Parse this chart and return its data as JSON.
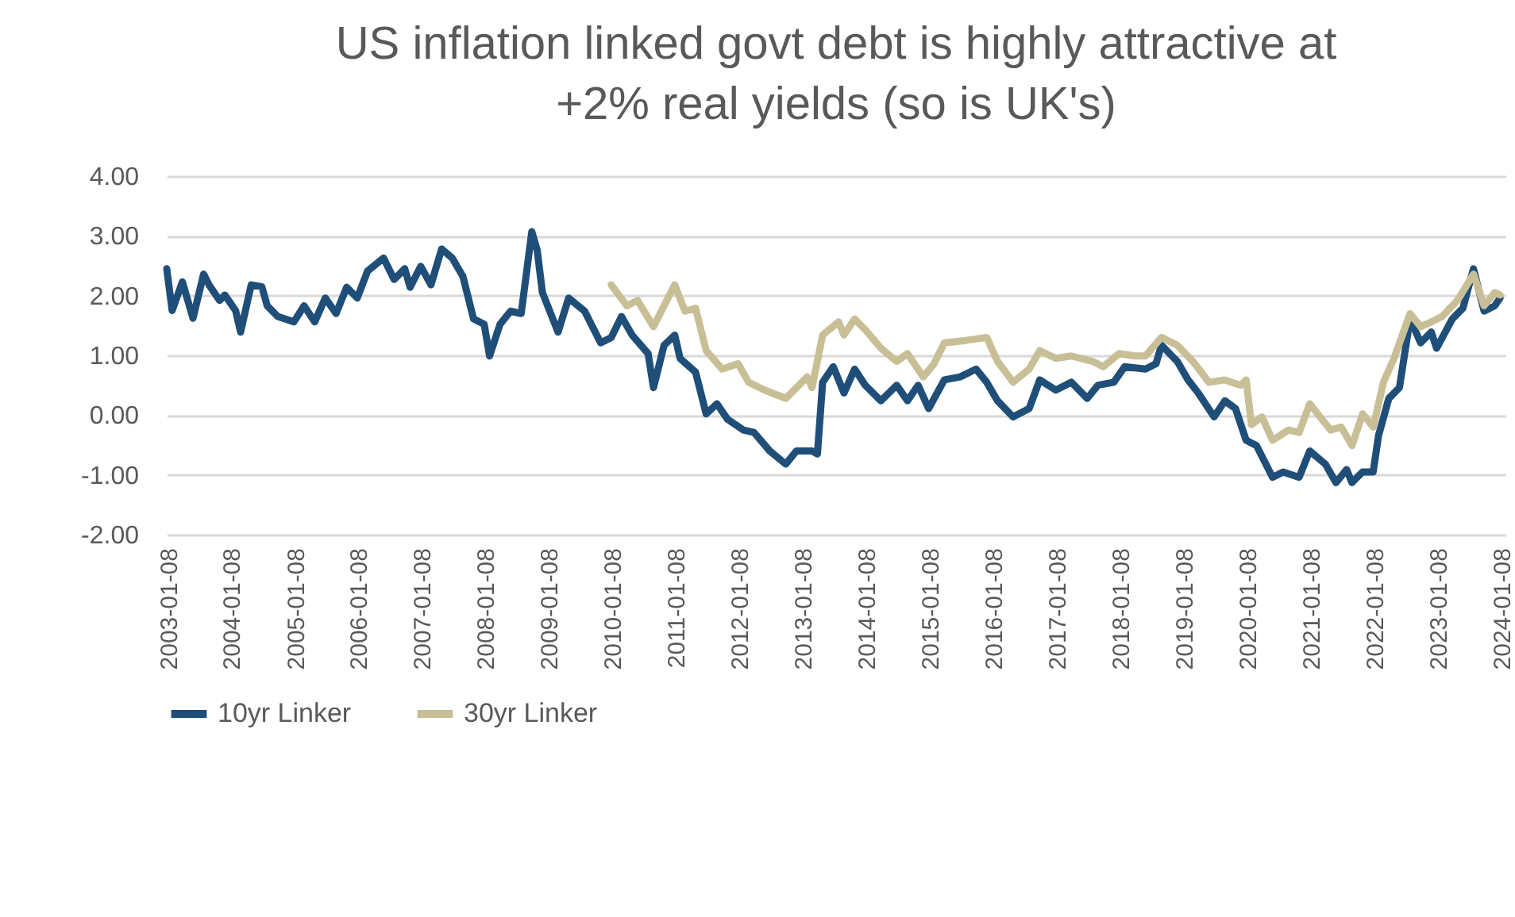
{
  "chart_data": {
    "type": "line",
    "title": "US inflation linked govt debt is highly attractive at +2% real yields (so is UK's)",
    "xlim": [
      "2003-01-01",
      "2024-02-01"
    ],
    "xticks": [
      "2003-01-08",
      "2004-01-08",
      "2005-01-08",
      "2006-01-08",
      "2007-01-08",
      "2008-01-08",
      "2009-01-08",
      "2010-01-08",
      "2011-01-08",
      "2012-01-08",
      "2013-01-08",
      "2014-01-08",
      "2015-01-08",
      "2016-01-08",
      "2017-01-08",
      "2018-01-08",
      "2019-01-08",
      "2020-01-08",
      "2021-01-08",
      "2022-01-08",
      "2023-01-08",
      "2024-01-08"
    ],
    "ylim": [
      -2,
      4
    ],
    "yticks": [
      {
        "value": -2,
        "label": "-2.00"
      },
      {
        "value": -1,
        "label": "-1.00"
      },
      {
        "value": 0,
        "label": "0.00"
      },
      {
        "value": 1,
        "label": "1.00"
      },
      {
        "value": 2,
        "label": "2.00"
      },
      {
        "value": 3,
        "label": "3.00"
      },
      {
        "value": 4,
        "label": "4.00"
      }
    ],
    "grid": "y",
    "legend": "bottom",
    "line_style": "solid",
    "marker": "none",
    "series": [
      {
        "name": "10yr Linker",
        "color": "#1f4e79",
        "x": [
          "2003-01",
          "2003-02",
          "2003-04",
          "2003-06",
          "2003-08",
          "2003-09",
          "2003-11",
          "2003-12",
          "2004-02",
          "2004-03",
          "2004-05",
          "2004-07",
          "2004-08",
          "2004-10",
          "2005-01",
          "2005-03",
          "2005-05",
          "2005-07",
          "2005-09",
          "2005-11",
          "2006-01",
          "2006-03",
          "2006-06",
          "2006-08",
          "2006-10",
          "2006-11",
          "2007-01",
          "2007-03",
          "2007-05",
          "2007-07",
          "2007-09",
          "2007-11",
          "2008-01",
          "2008-02",
          "2008-04",
          "2008-06",
          "2008-08",
          "2008-10",
          "2008-11",
          "2008-12",
          "2009-03",
          "2009-05",
          "2009-08",
          "2009-11",
          "2010-01",
          "2010-03",
          "2010-05",
          "2010-08",
          "2010-09",
          "2010-11",
          "2011-01",
          "2011-02",
          "2011-05",
          "2011-07",
          "2011-09",
          "2011-11",
          "2012-02",
          "2012-04",
          "2012-07",
          "2012-10",
          "2012-12",
          "2013-03",
          "2013-04",
          "2013-05",
          "2013-07",
          "2013-09",
          "2013-11",
          "2014-01",
          "2014-04",
          "2014-07",
          "2014-09",
          "2014-11",
          "2015-01",
          "2015-04",
          "2015-07",
          "2015-10",
          "2015-12",
          "2016-02",
          "2016-05",
          "2016-08",
          "2016-10",
          "2017-01",
          "2017-04",
          "2017-07",
          "2017-09",
          "2017-12",
          "2018-02",
          "2018-06",
          "2018-08",
          "2018-09",
          "2018-12",
          "2019-02",
          "2019-04",
          "2019-07",
          "2019-09",
          "2019-11",
          "2020-01",
          "2020-03",
          "2020-06",
          "2020-08",
          "2020-11",
          "2021-01",
          "2021-04",
          "2021-06",
          "2021-08",
          "2021-09",
          "2021-11",
          "2022-01",
          "2022-02",
          "2022-04",
          "2022-06",
          "2022-08",
          "2022-10",
          "2022-12",
          "2023-01",
          "2023-04",
          "2023-06",
          "2023-08",
          "2023-10",
          "2023-12",
          "2024-01"
        ],
        "values": [
          2.45,
          1.75,
          2.23,
          1.62,
          2.36,
          2.18,
          1.92,
          2.01,
          1.75,
          1.39,
          2.18,
          2.15,
          1.83,
          1.65,
          1.56,
          1.83,
          1.56,
          1.96,
          1.7,
          2.14,
          1.96,
          2.41,
          2.63,
          2.27,
          2.45,
          2.14,
          2.49,
          2.18,
          2.78,
          2.63,
          2.32,
          1.61,
          1.52,
          0.99,
          1.52,
          1.74,
          1.7,
          3.07,
          2.76,
          2.05,
          1.39,
          1.96,
          1.74,
          1.21,
          1.3,
          1.65,
          1.34,
          1.03,
          0.46,
          1.17,
          1.34,
          0.95,
          0.72,
          0.02,
          0.19,
          -0.07,
          -0.25,
          -0.29,
          -0.6,
          -0.82,
          -0.6,
          -0.6,
          -0.65,
          0.55,
          0.81,
          0.37,
          0.77,
          0.5,
          0.24,
          0.5,
          0.24,
          0.5,
          0.11,
          0.59,
          0.64,
          0.77,
          0.55,
          0.24,
          -0.03,
          0.11,
          0.59,
          0.42,
          0.55,
          0.28,
          0.5,
          0.55,
          0.81,
          0.77,
          0.86,
          1.17,
          0.9,
          0.59,
          0.37,
          -0.03,
          0.24,
          0.11,
          -0.42,
          -0.51,
          -1.04,
          -0.95,
          -1.04,
          -0.6,
          -0.82,
          -1.13,
          -0.91,
          -1.13,
          -0.95,
          -0.95,
          -0.34,
          0.28,
          0.46,
          1.61,
          1.21,
          1.39,
          1.12,
          1.61,
          1.79,
          2.45,
          1.74,
          1.83,
          1.96
        ]
      },
      {
        "name": "30yr Linker",
        "color": "#c9bf97",
        "x": [
          "2010-01",
          "2010-04",
          "2010-06",
          "2010-09",
          "2011-01",
          "2011-03",
          "2011-05",
          "2011-07",
          "2011-10",
          "2012-01",
          "2012-03",
          "2012-06",
          "2012-10",
          "2013-02",
          "2013-03",
          "2013-05",
          "2013-08",
          "2013-09",
          "2013-11",
          "2014-01",
          "2014-04",
          "2014-07",
          "2014-09",
          "2014-12",
          "2015-02",
          "2015-04",
          "2015-08",
          "2015-12",
          "2016-02",
          "2016-05",
          "2016-08",
          "2016-10",
          "2017-01",
          "2017-04",
          "2017-08",
          "2017-10",
          "2018-01",
          "2018-04",
          "2018-06",
          "2018-09",
          "2018-12",
          "2019-03",
          "2019-06",
          "2019-09",
          "2019-12",
          "2020-01",
          "2020-02",
          "2020-04",
          "2020-06",
          "2020-09",
          "2020-11",
          "2021-01",
          "2021-03",
          "2021-05",
          "2021-07",
          "2021-09",
          "2021-11",
          "2022-01",
          "2022-03",
          "2022-05",
          "2022-08",
          "2022-10",
          "2022-12",
          "2023-02",
          "2023-05",
          "2023-08",
          "2023-10",
          "2023-12",
          "2024-01"
        ],
        "values": [
          2.18,
          1.83,
          1.92,
          1.48,
          2.18,
          1.74,
          1.79,
          1.08,
          0.77,
          0.86,
          0.55,
          0.42,
          0.28,
          0.64,
          0.46,
          1.34,
          1.56,
          1.34,
          1.61,
          1.43,
          1.12,
          0.9,
          1.03,
          0.64,
          0.86,
          1.21,
          1.25,
          1.3,
          0.9,
          0.55,
          0.77,
          1.08,
          0.95,
          0.99,
          0.9,
          0.81,
          1.03,
          0.99,
          0.99,
          1.3,
          1.17,
          0.9,
          0.55,
          0.59,
          0.5,
          0.59,
          -0.16,
          -0.03,
          -0.42,
          -0.25,
          -0.29,
          0.19,
          -0.03,
          -0.25,
          -0.2,
          -0.51,
          0.02,
          -0.2,
          0.55,
          0.95,
          1.7,
          1.48,
          1.56,
          1.65,
          1.92,
          2.36,
          1.83,
          2.05,
          2.01
        ]
      }
    ]
  }
}
